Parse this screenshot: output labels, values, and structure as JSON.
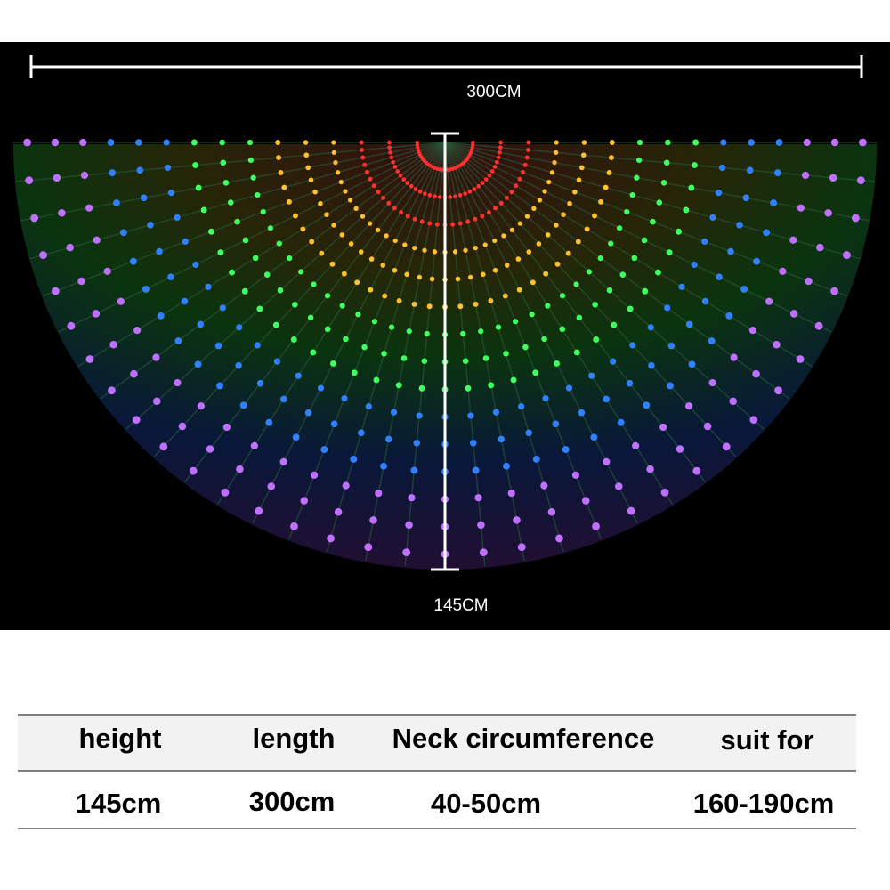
{
  "image": {
    "width_label": "300CM",
    "height_label": "145CM"
  },
  "table": {
    "header": [
      "height",
      "length",
      "Neck circumference",
      "suit for"
    ],
    "rows": [
      [
        "145cm",
        "300cm",
        "40-50cm",
        "160-190cm"
      ]
    ]
  }
}
